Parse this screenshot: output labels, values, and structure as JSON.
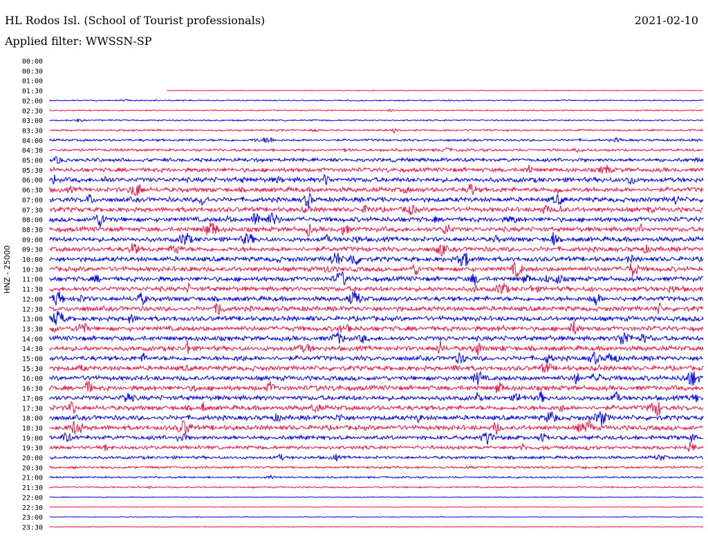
{
  "header": {
    "station": "HL Rodos Isl. (School of Tourist professionals)",
    "date": "2021-02-10",
    "filter": "Applied filter: WWSSN-SP"
  },
  "chart_data": {
    "type": "line",
    "title": "HL Rodos Isl. (School of Tourist professionals)",
    "date": "2021-02-10",
    "filter": "WWSSN-SP",
    "ylabel": "HNZ - 25000",
    "row_labels": [
      "00:00",
      "00:30",
      "01:00",
      "01:30",
      "02:00",
      "02:30",
      "03:00",
      "03:30",
      "04:00",
      "04:30",
      "05:00",
      "05:30",
      "06:00",
      "06:30",
      "07:00",
      "07:30",
      "08:00",
      "08:30",
      "09:00",
      "09:30",
      "10:00",
      "10:30",
      "11:00",
      "11:30",
      "12:00",
      "12:30",
      "13:00",
      "13:30",
      "14:00",
      "14:30",
      "15:00",
      "15:30",
      "16:00",
      "16:30",
      "17:00",
      "17:30",
      "18:00",
      "18:30",
      "19:00",
      "19:30",
      "20:00",
      "20:30",
      "21:00",
      "21:30",
      "22:00",
      "22:30",
      "23:00",
      "23:30"
    ],
    "trace_start_fraction": [
      null,
      null,
      null,
      0.18,
      0,
      0,
      0,
      0,
      0,
      0,
      0,
      0,
      0,
      0,
      0,
      0,
      0,
      0,
      0,
      0,
      0,
      0,
      0,
      0,
      0,
      0,
      0,
      0,
      0,
      0,
      0,
      0,
      0,
      0,
      0,
      0,
      0,
      0,
      0,
      0,
      0,
      0,
      0,
      0,
      0,
      0,
      0,
      0
    ],
    "noise_level": [
      0,
      0,
      0,
      0.6,
      1,
      1,
      1.2,
      1.5,
      2,
      2.2,
      3,
      3.5,
      4,
      4,
      4,
      4,
      4,
      4,
      4,
      4,
      4,
      4,
      4,
      4,
      4,
      4,
      4,
      4,
      4,
      4,
      4,
      4,
      4,
      4,
      4,
      4,
      4,
      4,
      3.5,
      3,
      2.5,
      2,
      1.5,
      1.2,
      0.6,
      0.6,
      0.6,
      0.6
    ],
    "colors": {
      "even_rows": "#0000ee",
      "odd_rows": "#ee1144"
    },
    "grid": false
  }
}
